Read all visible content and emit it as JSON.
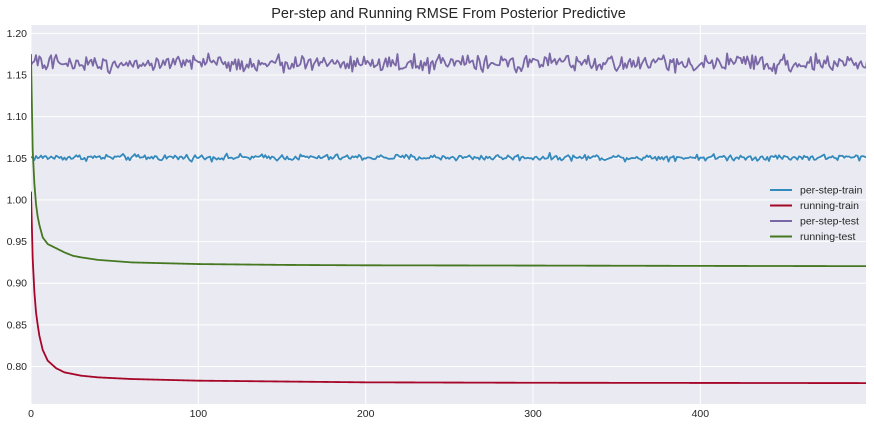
{
  "chart_data": {
    "type": "line",
    "title": "Per-step and Running RMSE From Posterior Predictive",
    "xlabel": "",
    "ylabel": "",
    "xlim": [
      0,
      499
    ],
    "ylim": [
      0.755,
      1.21
    ],
    "x_ticks": [
      0,
      100,
      200,
      300,
      400
    ],
    "x_tick_labels": [
      "0",
      "100",
      "200",
      "300",
      "400"
    ],
    "y_ticks": [
      0.8,
      0.85,
      0.9,
      0.95,
      1.0,
      1.05,
      1.1,
      1.15,
      1.2
    ],
    "y_tick_labels": [
      "0.80",
      "0.85",
      "0.90",
      "0.95",
      "1.00",
      "1.05",
      "1.10",
      "1.15",
      "1.20"
    ],
    "grid": true,
    "legend_position": "center-right",
    "background_color": "#eaeaf2",
    "series": [
      {
        "name": "per-step-train",
        "color": "#348abd",
        "style": "noisy",
        "mean": 1.051,
        "noise_amplitude": 0.0035,
        "x": [
          0,
          500
        ]
      },
      {
        "name": "running-train",
        "color": "#a60628",
        "style": "decay",
        "x": [
          0,
          1,
          2,
          3,
          4,
          5,
          7,
          10,
          15,
          20,
          30,
          40,
          60,
          80,
          100,
          150,
          200,
          300,
          400,
          499
        ],
        "values": [
          1.01,
          0.93,
          0.89,
          0.865,
          0.85,
          0.837,
          0.82,
          0.807,
          0.798,
          0.793,
          0.789,
          0.787,
          0.785,
          0.784,
          0.783,
          0.782,
          0.781,
          0.7805,
          0.7803,
          0.7801
        ]
      },
      {
        "name": "per-step-test",
        "color": "#7a68a6",
        "style": "noisy",
        "mean": 1.164,
        "noise_amplitude": 0.009,
        "x": [
          0,
          500
        ]
      },
      {
        "name": "running-test",
        "color": "#467821",
        "style": "decay",
        "x": [
          0,
          1,
          2,
          3,
          4,
          5,
          7,
          10,
          15,
          20,
          25,
          30,
          40,
          60,
          80,
          100,
          150,
          200,
          300,
          400,
          499
        ],
        "values": [
          1.175,
          1.06,
          1.02,
          0.995,
          0.98,
          0.97,
          0.955,
          0.947,
          0.942,
          0.937,
          0.933,
          0.931,
          0.928,
          0.925,
          0.924,
          0.923,
          0.922,
          0.9215,
          0.9212,
          0.9208,
          0.9205
        ]
      }
    ]
  }
}
